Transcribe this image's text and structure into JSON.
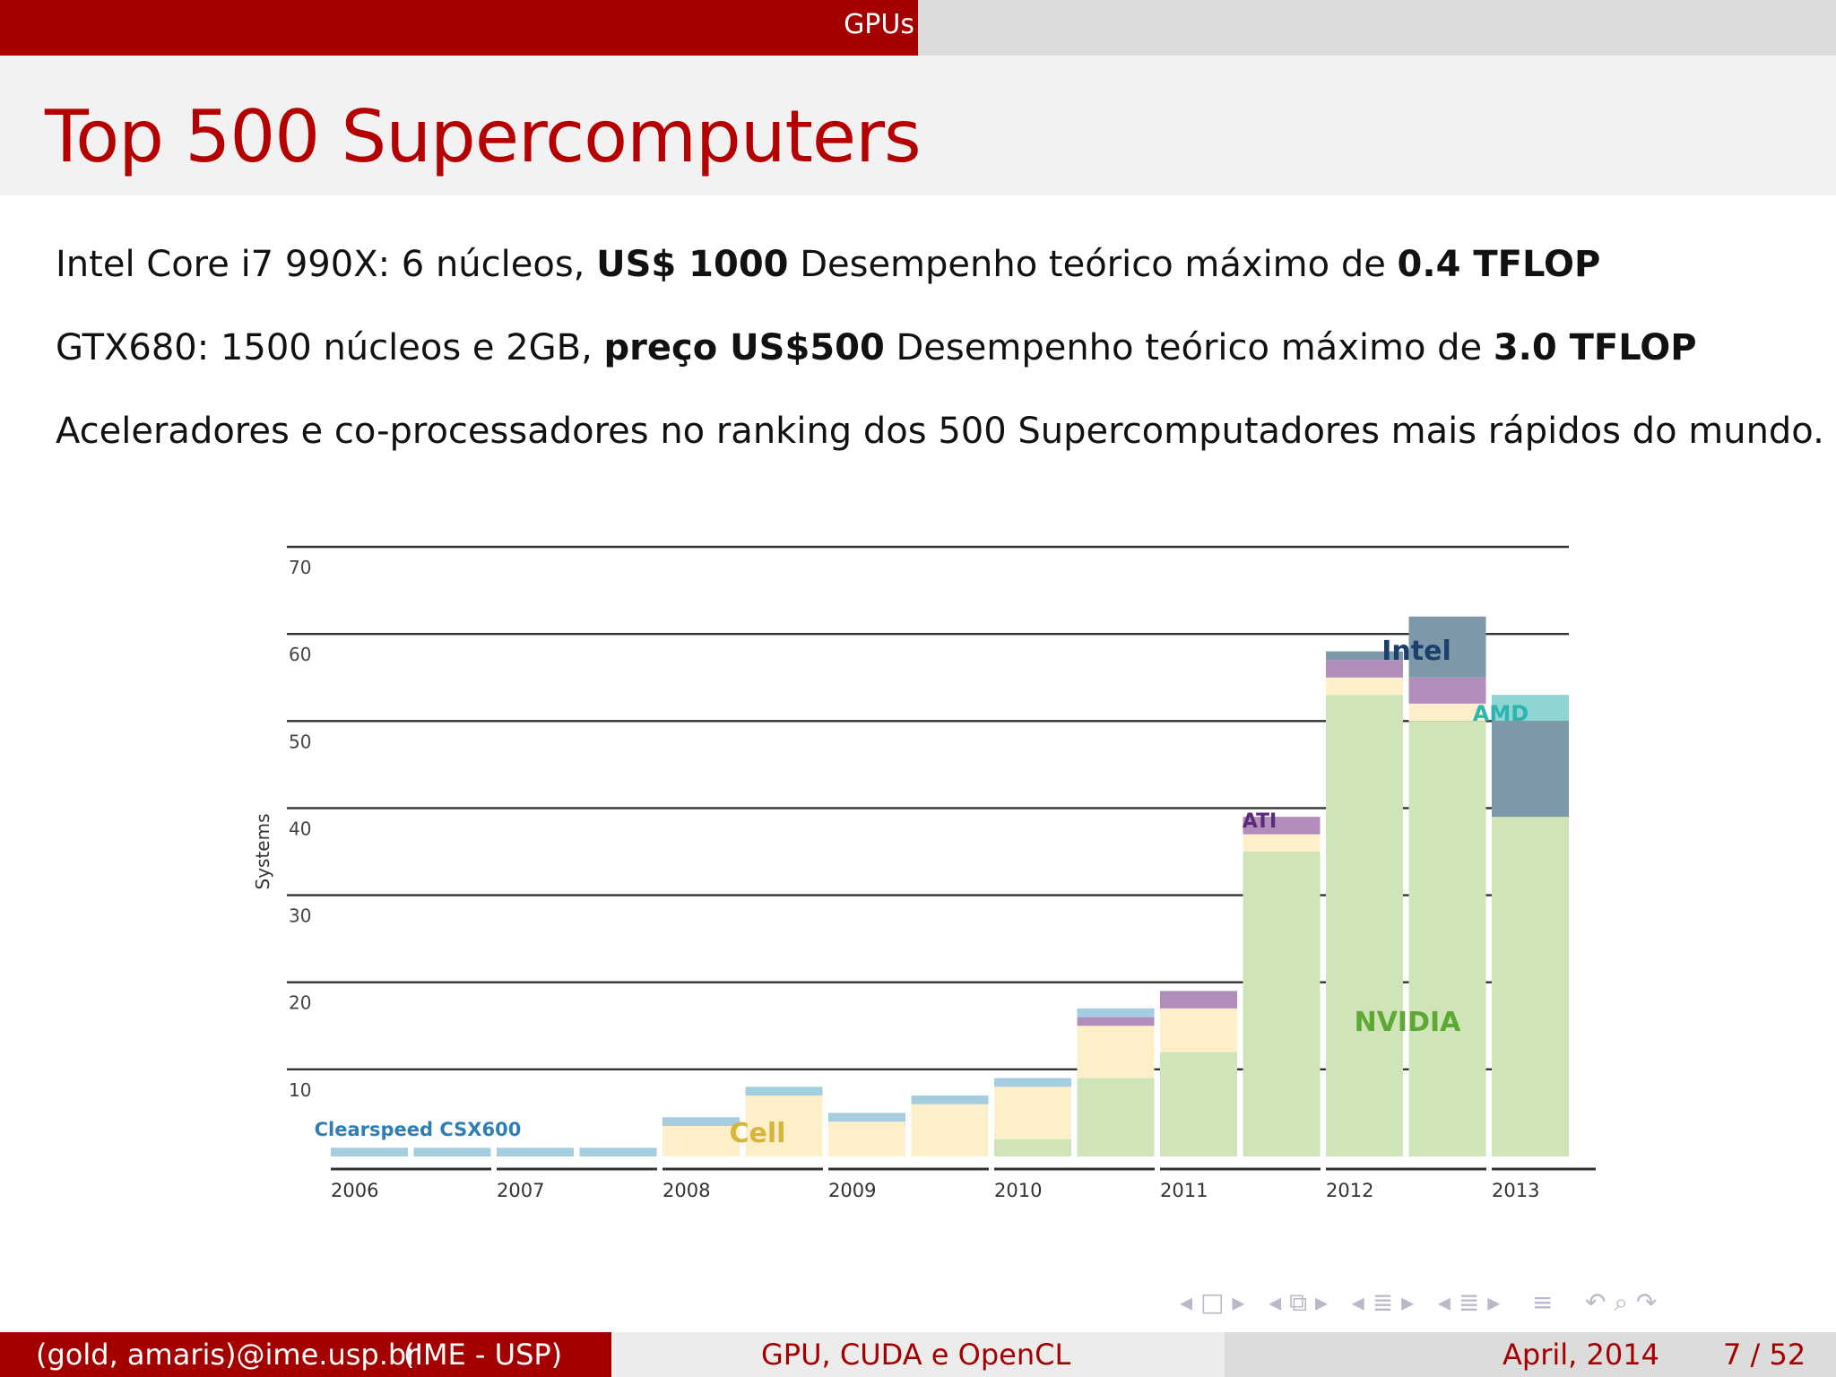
{
  "header": {
    "section": "GPUs"
  },
  "slide": {
    "title": "Top 500 Supercomputers"
  },
  "body": {
    "line1": {
      "a": "Intel Core i7 990X: 6 núcleos, ",
      "b": "US$ 1000",
      "c": " Desempenho teórico máximo de ",
      "d": "0.4 TFLOP"
    },
    "line2": {
      "a": "GTX680: 1500 núcleos e 2GB, ",
      "b": "preço US$500",
      "c": " Desempenho teórico máximo de ",
      "d": "3.0 TFLOP"
    },
    "line3": "Aceleradores e co-processadores no ranking dos 500 Supercomputadores mais rápidos do mundo."
  },
  "chart_data": {
    "type": "bar",
    "stacked": true,
    "ylabel": "Systems",
    "ylim": [
      0,
      70
    ],
    "yticks": [
      10,
      20,
      30,
      40,
      50,
      60,
      70
    ],
    "x_labels": [
      "2006",
      "2007",
      "2008",
      "2009",
      "2010",
      "2011",
      "2012",
      "2013"
    ],
    "grid": true,
    "series_colors": {
      "NVIDIA": "#cfe5b8",
      "Cell": "#fdf0c8",
      "ATI": "#b08dbb",
      "Clearspeed CSX600": "#a4cde0",
      "Intel": "#7d99a9",
      "AMD": "#8ed5d4"
    },
    "annotations": [
      "Clearspeed CSX600",
      "Cell",
      "ATI",
      "Intel",
      "AMD",
      "NVIDIA"
    ],
    "bars": [
      {
        "segments": [
          {
            "series": "Clearspeed CSX600",
            "value": 1
          }
        ]
      },
      {
        "segments": [
          {
            "series": "Clearspeed CSX600",
            "value": 1
          }
        ]
      },
      {
        "segments": [
          {
            "series": "Clearspeed CSX600",
            "value": 1
          }
        ]
      },
      {
        "segments": [
          {
            "series": "Clearspeed CSX600",
            "value": 1
          }
        ]
      },
      {
        "segments": [
          {
            "series": "Cell",
            "value": 3.5
          },
          {
            "series": "Clearspeed CSX600",
            "value": 1
          }
        ]
      },
      {
        "segments": [
          {
            "series": "Cell",
            "value": 7
          },
          {
            "series": "Clearspeed CSX600",
            "value": 1
          }
        ]
      },
      {
        "segments": [
          {
            "series": "Cell",
            "value": 4
          },
          {
            "series": "Clearspeed CSX600",
            "value": 1
          }
        ]
      },
      {
        "segments": [
          {
            "series": "Cell",
            "value": 6
          },
          {
            "series": "Clearspeed CSX600",
            "value": 1
          }
        ]
      },
      {
        "segments": [
          {
            "series": "NVIDIA",
            "value": 2
          },
          {
            "series": "Cell",
            "value": 6
          },
          {
            "series": "Clearspeed CSX600",
            "value": 1
          }
        ]
      },
      {
        "segments": [
          {
            "series": "NVIDIA",
            "value": 9
          },
          {
            "series": "Cell",
            "value": 6
          },
          {
            "series": "ATI",
            "value": 1
          },
          {
            "series": "Clearspeed CSX600",
            "value": 1
          }
        ]
      },
      {
        "segments": [
          {
            "series": "NVIDIA",
            "value": 12
          },
          {
            "series": "Cell",
            "value": 5
          },
          {
            "series": "ATI",
            "value": 2
          }
        ]
      },
      {
        "segments": [
          {
            "series": "NVIDIA",
            "value": 35
          },
          {
            "series": "Cell",
            "value": 2
          },
          {
            "series": "ATI",
            "value": 2
          }
        ]
      },
      {
        "segments": [
          {
            "series": "NVIDIA",
            "value": 53
          },
          {
            "series": "Cell",
            "value": 2
          },
          {
            "series": "ATI",
            "value": 2
          },
          {
            "series": "Intel",
            "value": 1
          }
        ]
      },
      {
        "segments": [
          {
            "series": "NVIDIA",
            "value": 50
          },
          {
            "series": "Cell",
            "value": 2
          },
          {
            "series": "ATI",
            "value": 3
          },
          {
            "series": "Intel",
            "value": 7
          }
        ]
      },
      {
        "segments": [
          {
            "series": "NVIDIA",
            "value": 39
          },
          {
            "series": "Intel",
            "value": 11
          },
          {
            "series": "AMD",
            "value": 3
          }
        ]
      }
    ]
  },
  "footer": {
    "authors": "(gold, amaris)@ime.usp.br",
    "institute": "(IME - USP)",
    "talk": "GPU, CUDA e OpenCL",
    "date": "April, 2014",
    "page": "7 / 52"
  },
  "nav": {
    "frame_prev": "◂",
    "frame": "□",
    "frame_next": "▸",
    "sub_prev": "◂",
    "sub": "⧉",
    "sub_next": "▸",
    "sec_prev": "◂",
    "sec": "≣",
    "sec_next": "▸",
    "ssec_prev": "◂",
    "ssec": "≣",
    "ssec_next": "▸",
    "toc": "≡",
    "back": "↶",
    "search": "⌕",
    "fwd": "↷"
  }
}
